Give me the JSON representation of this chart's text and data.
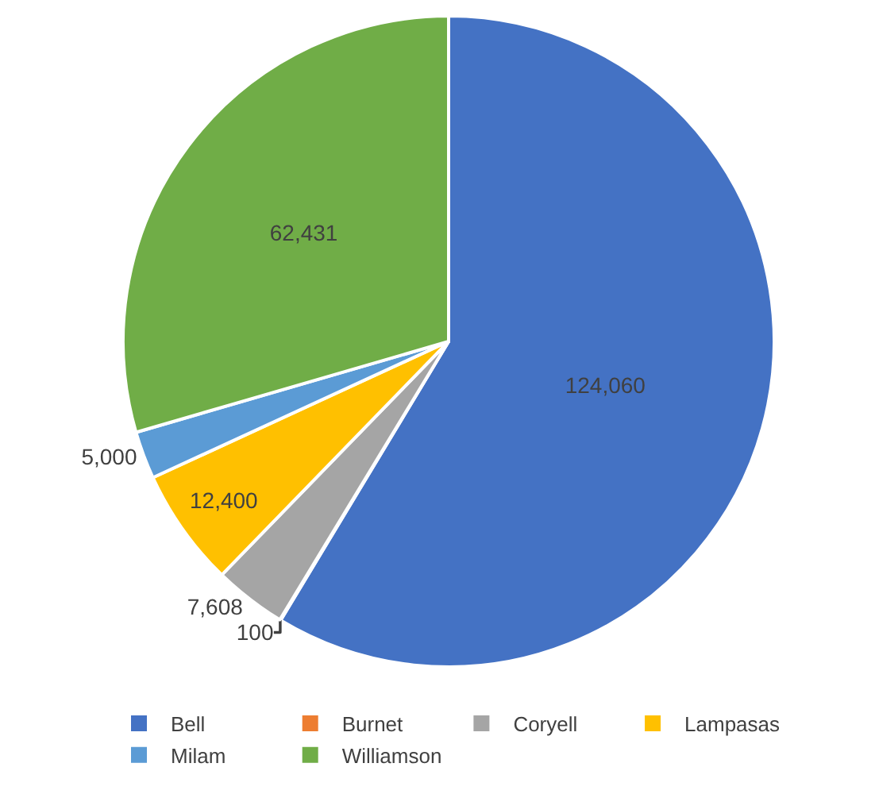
{
  "chart_data": {
    "type": "pie",
    "categories": [
      "Bell",
      "Burnet",
      "Coryell",
      "Lampasas",
      "Milam",
      "Williamson"
    ],
    "values": [
      124060,
      100,
      7608,
      12400,
      5000,
      62431
    ],
    "value_labels": [
      "124,060",
      "100",
      "7,608",
      "12,400",
      "5,000",
      "62,431"
    ],
    "colors": [
      "#4472c4",
      "#ed7d31",
      "#a5a5a5",
      "#ffc000",
      "#5b9bd5",
      "#70ad47"
    ],
    "legend": "bottom"
  }
}
